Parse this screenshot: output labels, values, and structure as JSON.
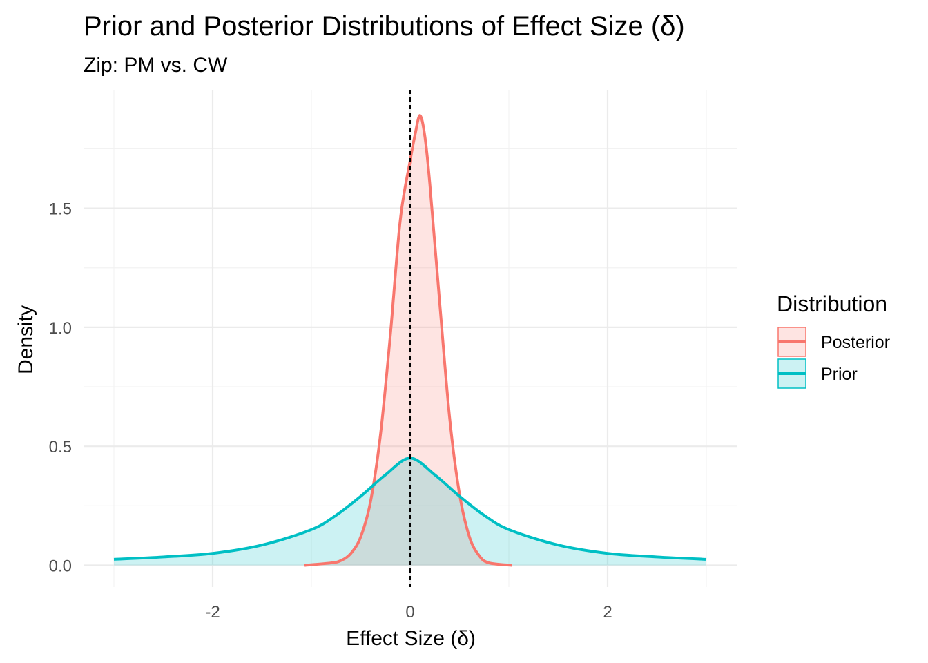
{
  "chart_data": {
    "type": "area",
    "title": "Prior and Posterior Distributions of Effect Size (δ)",
    "subtitle": "Zip: PM vs. CW",
    "xlabel": "Effect Size (δ)",
    "ylabel": "Density",
    "xlim": [
      -3.0,
      3.0
    ],
    "ylim": [
      0,
      1.89
    ],
    "x_ticks": [
      -2,
      0,
      2
    ],
    "x_tick_labels": [
      "-2",
      "0",
      "2"
    ],
    "y_ticks": [
      0.0,
      0.5,
      1.0,
      1.5
    ],
    "y_tick_labels": [
      "0.0",
      "0.5",
      "1.0",
      "1.5"
    ],
    "grid": true,
    "reference_line": {
      "x": 0,
      "style": "dashed"
    },
    "legend": {
      "title": "Distribution",
      "placement": "right"
    },
    "series": [
      {
        "name": "Posterior",
        "color": "#F8766D",
        "x": [
          -1.07,
          -0.8,
          -0.7,
          -0.6,
          -0.5,
          -0.4,
          -0.3,
          -0.2,
          -0.1,
          0.0,
          0.05,
          0.1,
          0.15,
          0.2,
          0.3,
          0.4,
          0.5,
          0.6,
          0.7,
          0.8,
          1.03
        ],
        "values": [
          0.0,
          0.01,
          0.02,
          0.05,
          0.12,
          0.27,
          0.55,
          0.97,
          1.45,
          1.7,
          1.81,
          1.89,
          1.8,
          1.6,
          1.1,
          0.62,
          0.3,
          0.12,
          0.04,
          0.01,
          0.0
        ]
      },
      {
        "name": "Prior",
        "color": "#00BFC4",
        "x": [
          -3.0,
          -2.5,
          -2.0,
          -1.5,
          -1.0,
          -0.75,
          -0.5,
          -0.25,
          0.0,
          0.25,
          0.5,
          0.75,
          1.0,
          1.5,
          2.0,
          2.5,
          3.0
        ],
        "values": [
          0.025,
          0.035,
          0.05,
          0.085,
          0.15,
          0.21,
          0.29,
          0.38,
          0.45,
          0.38,
          0.29,
          0.21,
          0.15,
          0.085,
          0.05,
          0.035,
          0.025
        ]
      }
    ]
  }
}
